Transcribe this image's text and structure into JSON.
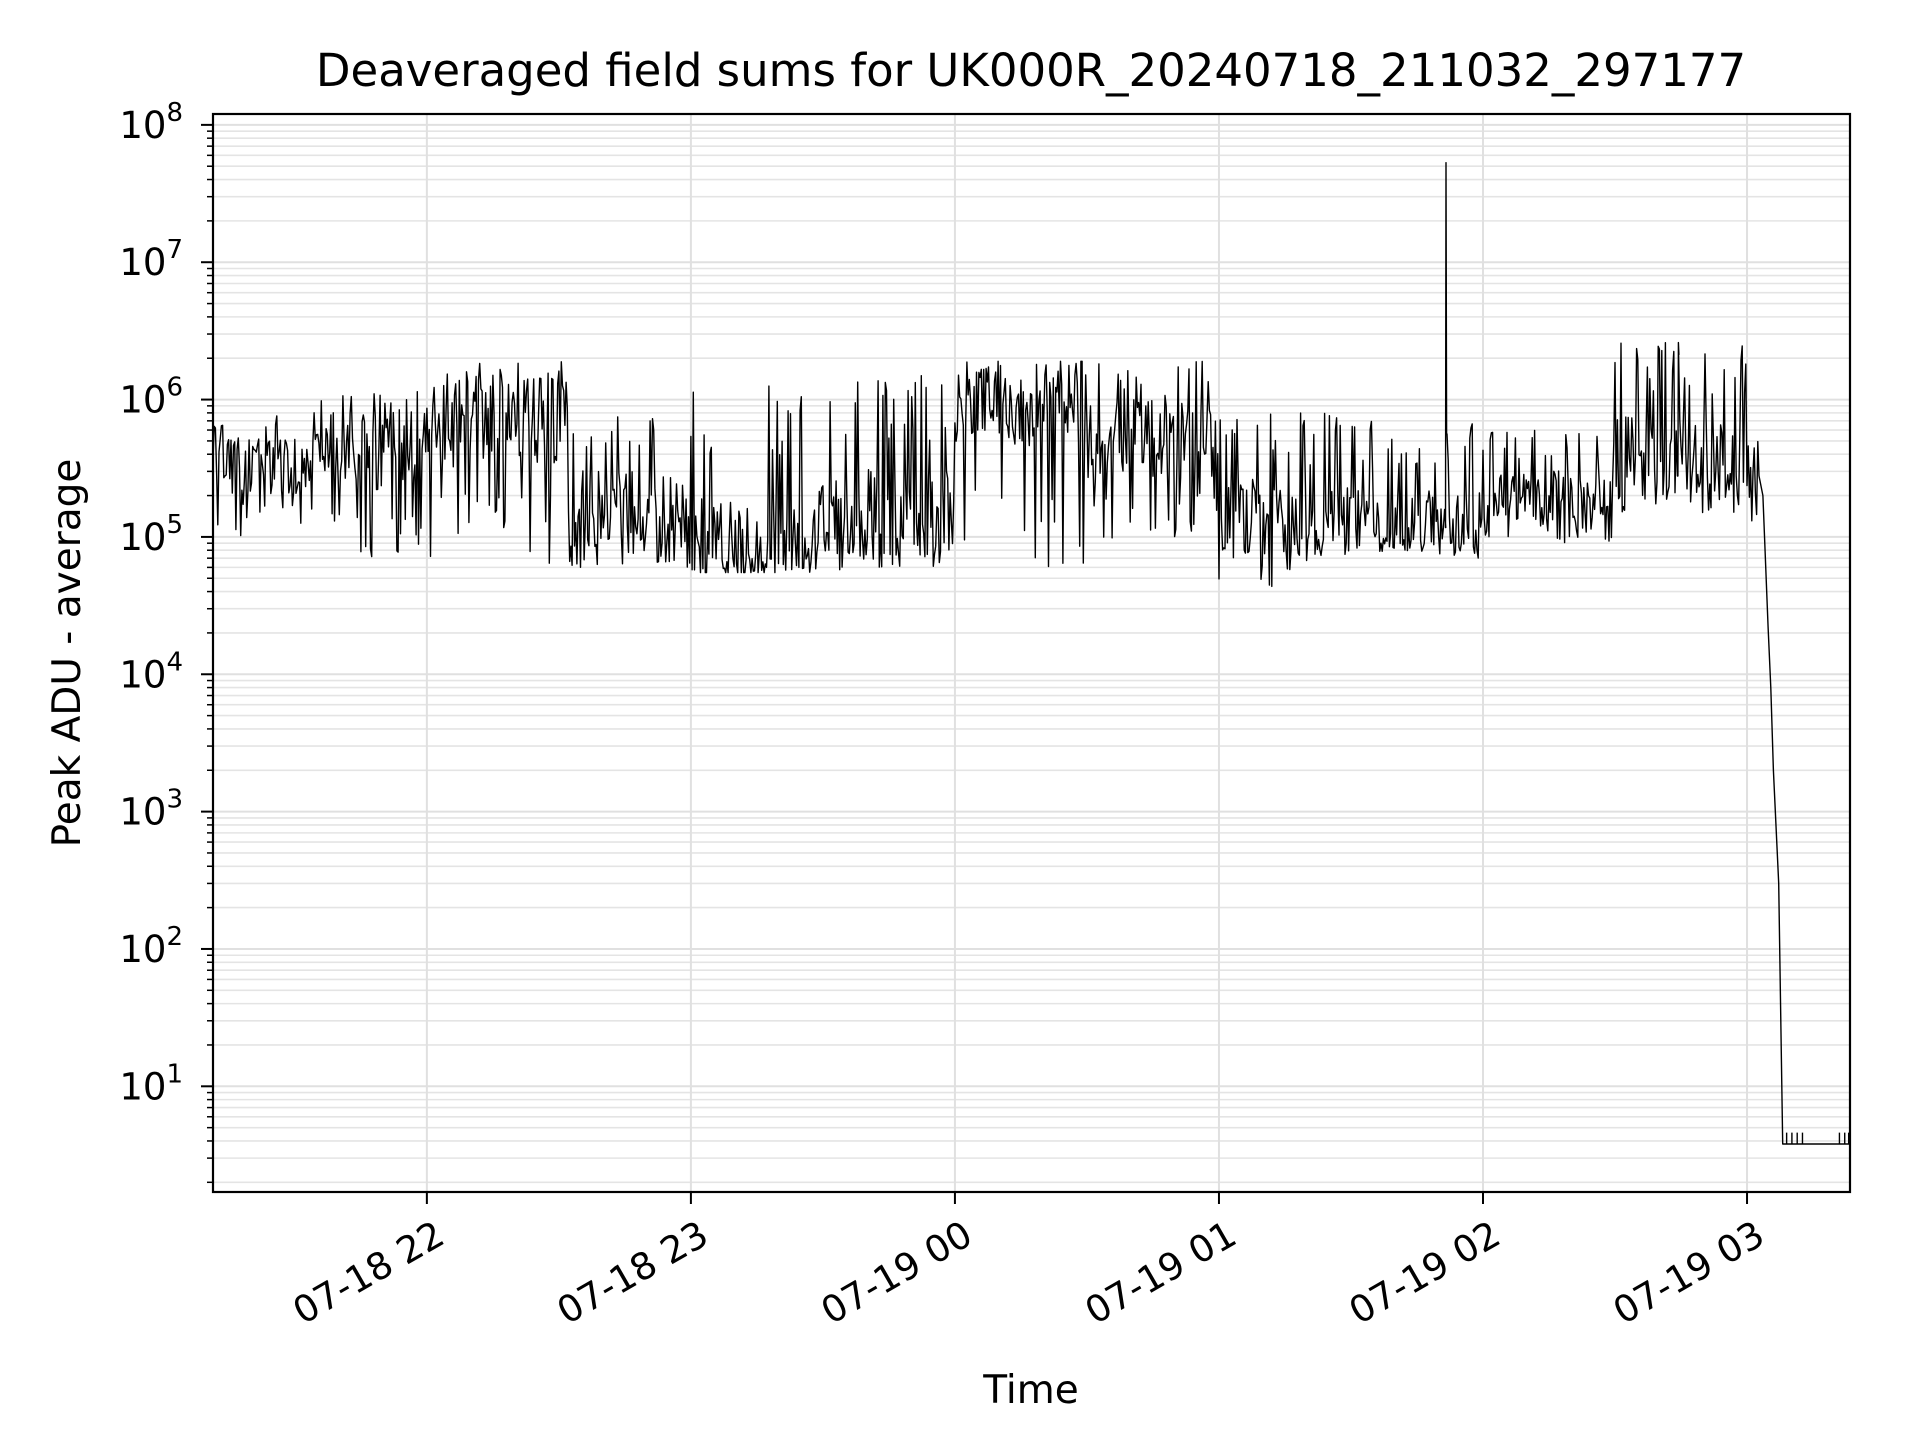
{
  "chart_data": {
    "type": "line",
    "title": "Deaveraged field sums for UK000R_20240718_211032_297177",
    "xlabel": "Time",
    "ylabel": "Peak ADU - average",
    "yscale": "log",
    "ylim": [
      1.7,
      120000000
    ],
    "xlim_hours": [
      21.19,
      27.39
    ],
    "x_unit": "hours since 07-18 00:00",
    "grid": true,
    "x_ticks": [
      {
        "value": 22,
        "label": "07-18 22"
      },
      {
        "value": 23,
        "label": "07-18 23"
      },
      {
        "value": 24,
        "label": "07-19 00"
      },
      {
        "value": 25,
        "label": "07-19 01"
      },
      {
        "value": 26,
        "label": "07-19 02"
      },
      {
        "value": 27,
        "label": "07-19 03"
      }
    ],
    "y_ticks": [
      {
        "value": 10,
        "base": "10",
        "exp": "1"
      },
      {
        "value": 100,
        "base": "10",
        "exp": "2"
      },
      {
        "value": 1000,
        "base": "10",
        "exp": "3"
      },
      {
        "value": 10000,
        "base": "10",
        "exp": "4"
      },
      {
        "value": 100000,
        "base": "10",
        "exp": "5"
      },
      {
        "value": 1000000,
        "base": "10",
        "exp": "6"
      },
      {
        "value": 10000000,
        "base": "10",
        "exp": "7"
      },
      {
        "value": 100000000,
        "base": "10",
        "exp": "8"
      }
    ],
    "series": [
      {
        "name": "Peak ADU - average",
        "color": "#000000",
        "segments": [
          {
            "x_start": 21.19,
            "x_end": 21.55,
            "min": 100000,
            "max": 800000,
            "typical": 330000
          },
          {
            "x_start": 21.55,
            "x_end": 22.0,
            "min": 70000,
            "max": 1300000,
            "typical": 420000
          },
          {
            "x_start": 22.0,
            "x_end": 22.55,
            "min": 60000,
            "max": 1900000,
            "typical": 700000
          },
          {
            "x_start": 22.55,
            "x_end": 23.0,
            "min": 60000,
            "max": 1100000,
            "typical": 160000
          },
          {
            "x_start": 23.0,
            "x_end": 23.45,
            "min": 55000,
            "max": 1500000,
            "typical": 90000
          },
          {
            "x_start": 23.45,
            "x_end": 24.0,
            "min": 55000,
            "max": 1600000,
            "typical": 150000
          },
          {
            "x_start": 24.0,
            "x_end": 24.5,
            "min": 60000,
            "max": 1900000,
            "typical": 1000000
          },
          {
            "x_start": 24.5,
            "x_end": 25.0,
            "min": 90000,
            "max": 2300000,
            "typical": 500000
          },
          {
            "x_start": 25.0,
            "x_end": 25.5,
            "min": 42000,
            "max": 800000,
            "typical": 140000
          },
          {
            "x_start": 25.5,
            "x_end": 26.0,
            "min": 70000,
            "max": 700000,
            "typical": 130000
          },
          {
            "x_start": 26.0,
            "x_end": 26.5,
            "min": 90000,
            "max": 600000,
            "typical": 200000
          },
          {
            "x_start": 26.5,
            "x_end": 27.0,
            "min": 150000,
            "max": 2600000,
            "typical": 400000
          },
          {
            "x_start": 27.0,
            "x_end": 27.05,
            "min": 100000,
            "max": 800000,
            "typical": 300000
          }
        ],
        "points": [
          {
            "x": 25.86,
            "y": 53000000
          },
          {
            "x": 26.74,
            "y": 2600000
          },
          {
            "x": 27.06,
            "y": 200000
          },
          {
            "x": 27.08,
            "y": 22000
          },
          {
            "x": 27.09,
            "y": 8000
          },
          {
            "x": 27.1,
            "y": 2000
          },
          {
            "x": 27.12,
            "y": 300
          },
          {
            "x": 27.135,
            "y": 3.8
          },
          {
            "x": 27.39,
            "y": 3.8
          }
        ]
      }
    ]
  }
}
